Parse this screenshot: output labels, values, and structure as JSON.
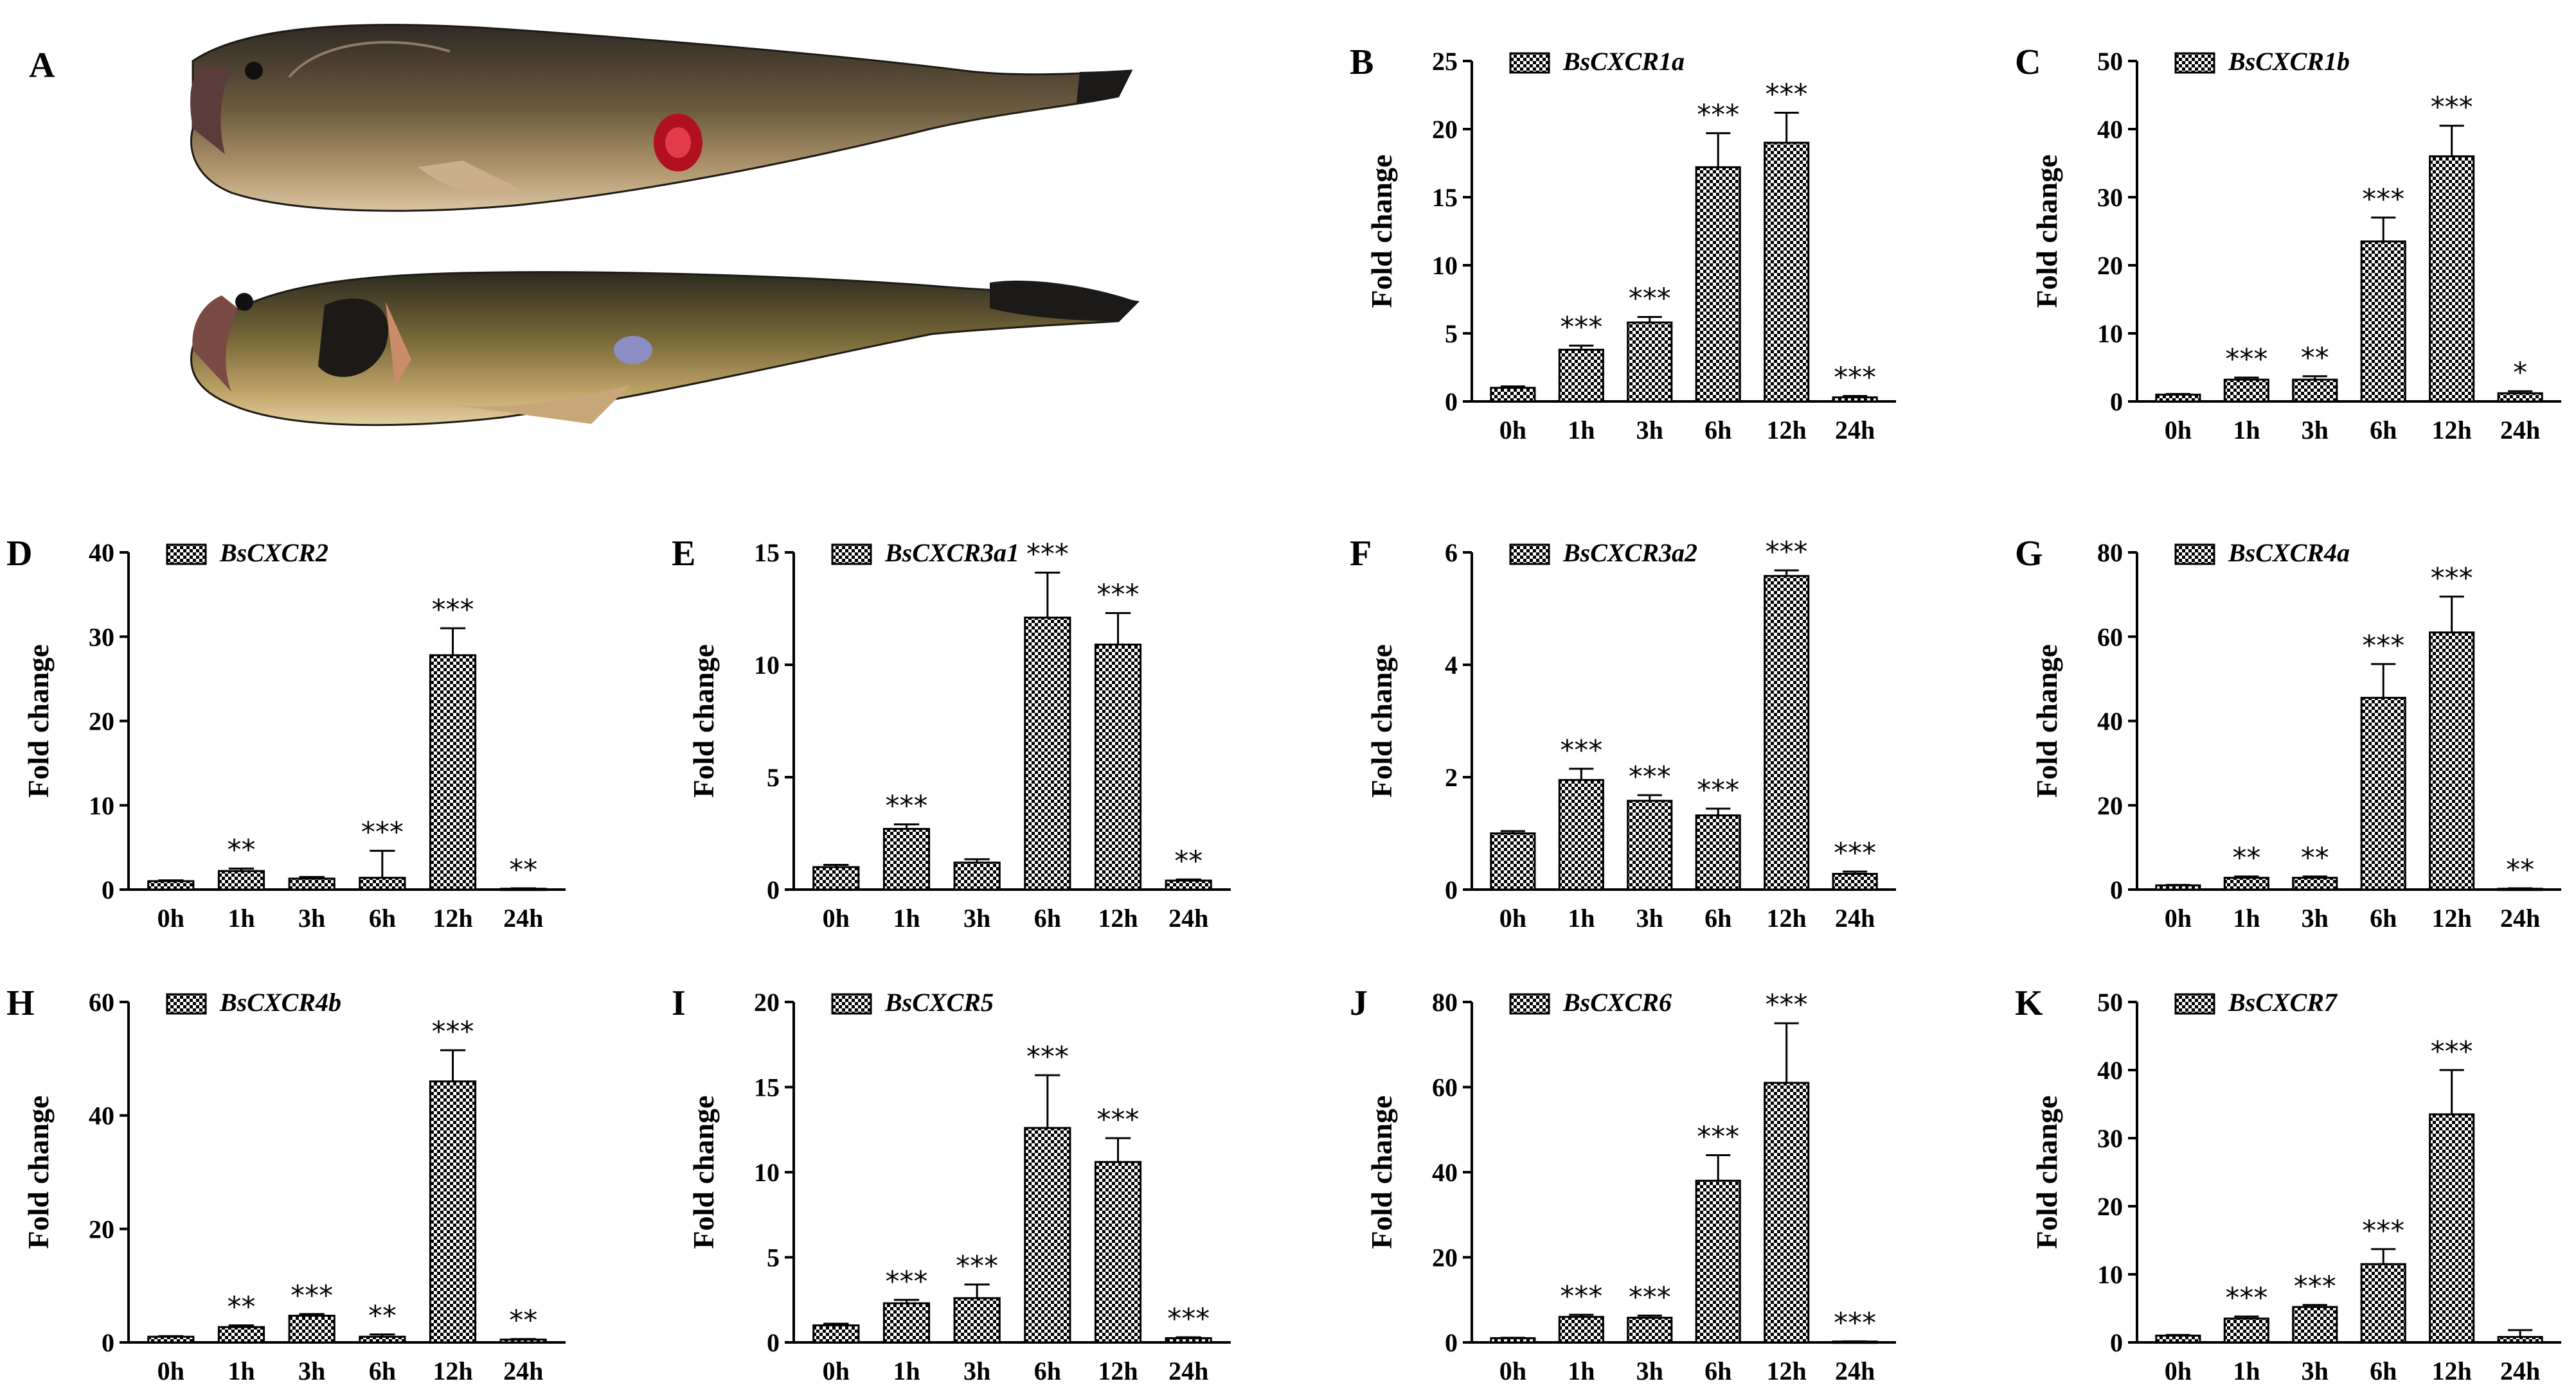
{
  "panel_a": {
    "label": "A"
  },
  "chart_data": [
    {
      "panel": "B",
      "type": "bar",
      "title": "BsCXCR1a",
      "ylabel": "Fold change",
      "categories": [
        "0h",
        "1h",
        "3h",
        "6h",
        "12h",
        "24h"
      ],
      "values": [
        1,
        3.8,
        5.8,
        17.2,
        19,
        0.3
      ],
      "errors": [
        0.1,
        0.3,
        0.4,
        2.5,
        2.2,
        0.1
      ],
      "sig": [
        "",
        "***",
        "***",
        "***",
        "***",
        "***"
      ],
      "ylim": [
        0,
        25
      ],
      "yticks": [
        0,
        5,
        10,
        15,
        20,
        25
      ]
    },
    {
      "panel": "C",
      "type": "bar",
      "title": "BsCXCR1b",
      "ylabel": "Fold change",
      "categories": [
        "0h",
        "1h",
        "3h",
        "6h",
        "12h",
        "24h"
      ],
      "values": [
        1,
        3.2,
        3.2,
        23.5,
        36,
        1.2
      ],
      "errors": [
        0.1,
        0.3,
        0.5,
        3.5,
        4.5,
        0.3
      ],
      "sig": [
        "",
        "***",
        "**",
        "***",
        "***",
        "*"
      ],
      "ylim": [
        0,
        50
      ],
      "yticks": [
        0,
        10,
        20,
        30,
        40,
        50
      ]
    },
    {
      "panel": "D",
      "type": "bar",
      "title": "BsCXCR2",
      "ylabel": "Fold change",
      "categories": [
        "0h",
        "1h",
        "3h",
        "6h",
        "12h",
        "24h"
      ],
      "values": [
        1,
        2.2,
        1.3,
        1.4,
        27.8,
        0.1
      ],
      "errors": [
        0.1,
        0.3,
        0.2,
        3.2,
        3.2,
        0.05
      ],
      "sig": [
        "",
        "**",
        "",
        "***",
        "***",
        "**"
      ],
      "ylim": [
        0,
        40
      ],
      "yticks": [
        0,
        10,
        20,
        30,
        40
      ]
    },
    {
      "panel": "E",
      "type": "bar",
      "title": "BsCXCR3a1",
      "ylabel": "Fold change",
      "categories": [
        "0h",
        "1h",
        "3h",
        "6h",
        "12h",
        "24h"
      ],
      "values": [
        1,
        2.7,
        1.2,
        12.1,
        10.9,
        0.4
      ],
      "errors": [
        0.1,
        0.2,
        0.15,
        2,
        1.4,
        0.05
      ],
      "sig": [
        "",
        "***",
        "",
        "***",
        "***",
        "**"
      ],
      "ylim": [
        0,
        15
      ],
      "yticks": [
        0,
        5,
        10,
        15
      ]
    },
    {
      "panel": "F",
      "type": "bar",
      "title": "BsCXCR3a2",
      "ylabel": "Fold change",
      "categories": [
        "0h",
        "1h",
        "3h",
        "6h",
        "12h",
        "24h"
      ],
      "values": [
        1,
        1.95,
        1.58,
        1.32,
        5.58,
        0.28
      ],
      "errors": [
        0.04,
        0.2,
        0.1,
        0.12,
        0.1,
        0.04
      ],
      "sig": [
        "",
        "***",
        "***",
        "***",
        "***",
        "***"
      ],
      "ylim": [
        0,
        6
      ],
      "yticks": [
        0,
        2,
        4,
        6
      ]
    },
    {
      "panel": "G",
      "type": "bar",
      "title": "BsCXCR4a",
      "ylabel": "Fold change",
      "categories": [
        "0h",
        "1h",
        "3h",
        "6h",
        "12h",
        "24h"
      ],
      "values": [
        1,
        2.8,
        2.8,
        45.5,
        61,
        0.2
      ],
      "errors": [
        0.1,
        0.3,
        0.3,
        8,
        8.5,
        0.1
      ],
      "sig": [
        "",
        "**",
        "**",
        "***",
        "***",
        "**"
      ],
      "ylim": [
        0,
        80
      ],
      "yticks": [
        0,
        20,
        40,
        60,
        80
      ]
    },
    {
      "panel": "H",
      "type": "bar",
      "title": "BsCXCR4b",
      "ylabel": "Fold change",
      "categories": [
        "0h",
        "1h",
        "3h",
        "6h",
        "12h",
        "24h"
      ],
      "values": [
        1,
        2.7,
        4.7,
        1,
        46,
        0.5
      ],
      "errors": [
        0.1,
        0.3,
        0.3,
        0.4,
        5.5,
        0.1
      ],
      "sig": [
        "",
        "**",
        "***",
        "**",
        "***",
        "**"
      ],
      "ylim": [
        0,
        60
      ],
      "yticks": [
        0,
        20,
        40,
        60
      ]
    },
    {
      "panel": "I",
      "type": "bar",
      "title": "BsCXCR5",
      "ylabel": "Fold change",
      "categories": [
        "0h",
        "1h",
        "3h",
        "6h",
        "12h",
        "24h"
      ],
      "values": [
        1,
        2.3,
        2.6,
        12.6,
        10.6,
        0.25
      ],
      "errors": [
        0.1,
        0.2,
        0.8,
        3.1,
        1.4,
        0.05
      ],
      "sig": [
        "",
        "***",
        "***",
        "***",
        "***",
        "***"
      ],
      "ylim": [
        0,
        20
      ],
      "yticks": [
        0,
        5,
        10,
        15,
        20
      ]
    },
    {
      "panel": "J",
      "type": "bar",
      "title": "BsCXCR6",
      "ylabel": "Fold change",
      "categories": [
        "0h",
        "1h",
        "3h",
        "6h",
        "12h",
        "24h"
      ],
      "values": [
        1,
        6,
        5.8,
        38,
        61,
        0.2
      ],
      "errors": [
        0.1,
        0.5,
        0.5,
        6,
        14,
        0.05
      ],
      "sig": [
        "",
        "***",
        "***",
        "***",
        "***",
        "***"
      ],
      "ylim": [
        0,
        80
      ],
      "yticks": [
        0,
        20,
        40,
        60,
        80
      ]
    },
    {
      "panel": "K",
      "type": "bar",
      "title": "BsCXCR7",
      "ylabel": "Fold change",
      "categories": [
        "0h",
        "1h",
        "3h",
        "6h",
        "12h",
        "24h"
      ],
      "values": [
        1,
        3.5,
        5.2,
        11.5,
        33.5,
        0.8
      ],
      "errors": [
        0.1,
        0.3,
        0.3,
        2.2,
        6.5,
        1
      ],
      "sig": [
        "",
        "***",
        "***",
        "***",
        "***",
        ""
      ],
      "ylim": [
        0,
        50
      ],
      "yticks": [
        0,
        10,
        20,
        30,
        40,
        50
      ]
    }
  ]
}
